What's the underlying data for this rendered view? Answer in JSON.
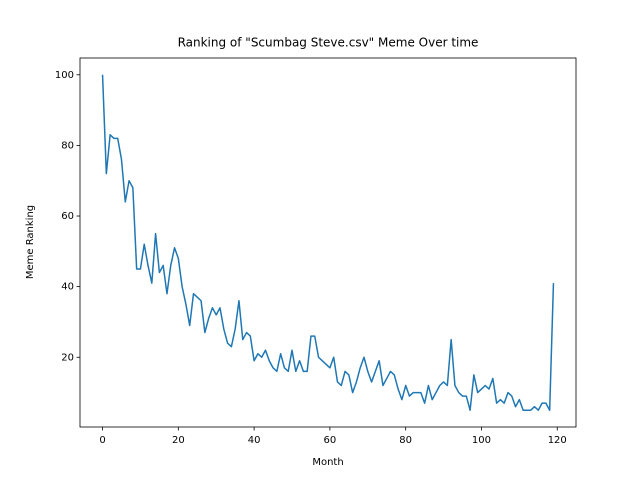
{
  "chart_data": {
    "type": "line",
    "title": "Ranking of \"Scumbag Steve.csv\" Meme Over time",
    "x_label": "Month",
    "y_label": "Meme Ranking",
    "x": [
      0,
      1,
      2,
      3,
      4,
      5,
      6,
      7,
      8,
      9,
      10,
      11,
      12,
      13,
      14,
      15,
      16,
      17,
      18,
      19,
      20,
      21,
      22,
      23,
      24,
      25,
      26,
      27,
      28,
      29,
      30,
      31,
      32,
      33,
      34,
      35,
      36,
      37,
      38,
      39,
      40,
      41,
      42,
      43,
      44,
      45,
      46,
      47,
      48,
      49,
      50,
      51,
      52,
      53,
      54,
      55,
      56,
      57,
      58,
      59,
      60,
      61,
      62,
      63,
      64,
      65,
      66,
      67,
      68,
      69,
      70,
      71,
      72,
      73,
      74,
      75,
      76,
      77,
      78,
      79,
      80,
      81,
      82,
      83,
      84,
      85,
      86,
      87,
      88,
      89,
      90,
      91,
      92,
      93,
      94,
      95,
      96,
      97,
      98,
      99,
      100,
      101,
      102,
      103,
      104,
      105,
      106,
      107,
      108,
      109,
      110,
      111,
      112,
      113,
      114,
      115,
      116,
      117,
      118,
      119
    ],
    "values": [
      100,
      72,
      83,
      82,
      82,
      76,
      64,
      70,
      68,
      45,
      45,
      52,
      46,
      41,
      55,
      44,
      46,
      38,
      46,
      51,
      48,
      40,
      35,
      29,
      38,
      37,
      36,
      27,
      31,
      34,
      32,
      34,
      28,
      24,
      23,
      28,
      36,
      25,
      27,
      26,
      19,
      21,
      20,
      22,
      19,
      17,
      16,
      21,
      17,
      16,
      22,
      16,
      19,
      16,
      16,
      26,
      26,
      20,
      19,
      18,
      17,
      20,
      13,
      12,
      16,
      15,
      10,
      13,
      17,
      20,
      16,
      13,
      16,
      19,
      12,
      14,
      16,
      15,
      11,
      8,
      12,
      9,
      10,
      10,
      10,
      7,
      12,
      8,
      10,
      12,
      13,
      12,
      25,
      12,
      10,
      9,
      9,
      5,
      15,
      10,
      11,
      12,
      11,
      14,
      7,
      8,
      7,
      10,
      9,
      6,
      8,
      5,
      5,
      5,
      6,
      5,
      7,
      7,
      5,
      41
    ],
    "color": "#1f77b4",
    "xlim": [
      -5.95,
      124.95
    ],
    "ylim": [
      0.25,
      104.75
    ],
    "xticks": [
      0,
      20,
      40,
      60,
      80,
      100,
      120
    ],
    "yticks": [
      20,
      40,
      60,
      80,
      100
    ]
  }
}
